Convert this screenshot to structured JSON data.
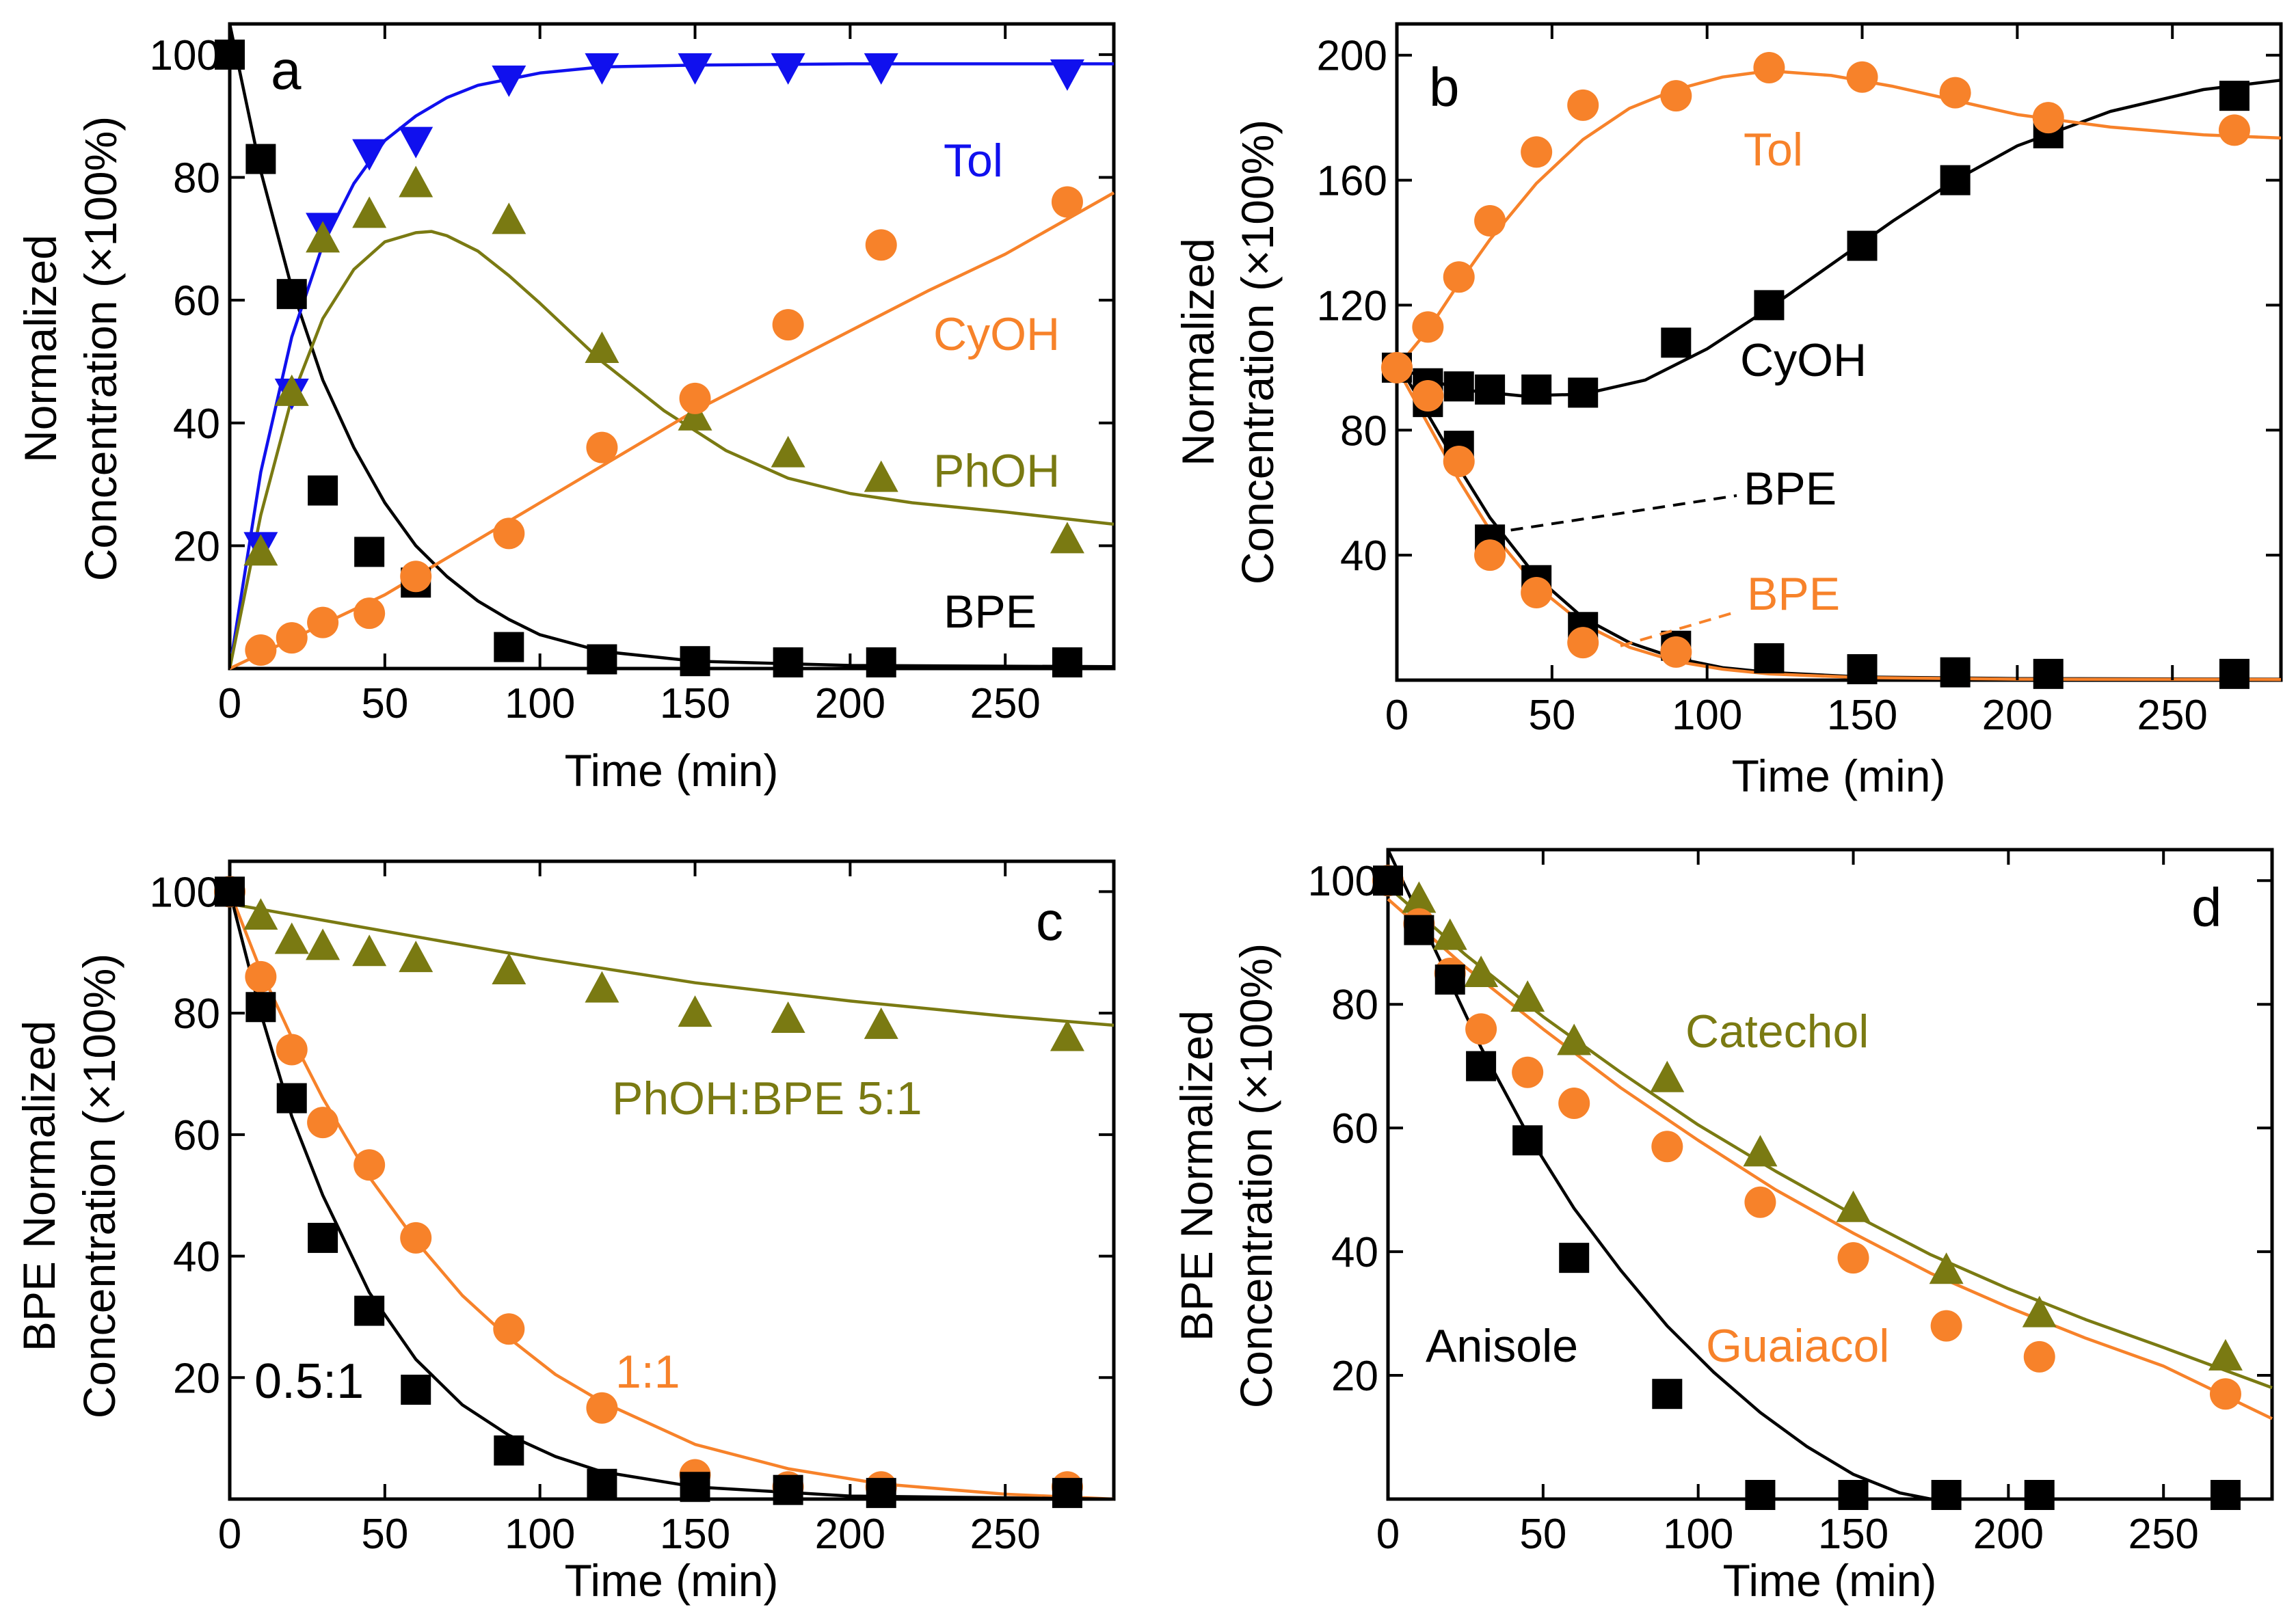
{
  "figure": {
    "colors": {
      "black": "#000000",
      "blue": "#1010ee",
      "orange": "#f7822a",
      "olive": "#7a7a12"
    }
  },
  "chart_data": [
    {
      "panel": "a",
      "type": "scatter",
      "xlabel": "Time (min)",
      "ylabel_lines": [
        "Normalized",
        "Concentration (×100%)"
      ],
      "xlim": [
        0,
        285
      ],
      "ylim": [
        0,
        105
      ],
      "xticks": [
        0,
        50,
        100,
        150,
        200,
        250
      ],
      "yticks": [
        20,
        40,
        60,
        80,
        100
      ],
      "series": [
        {
          "name": "BPE",
          "label": "BPE",
          "color": "#000000",
          "marker": "square",
          "x": [
            0,
            10,
            20,
            30,
            45,
            60,
            90,
            120,
            150,
            180,
            210,
            270
          ],
          "y": [
            100,
            83,
            61,
            29,
            19,
            14,
            3.5,
            1.5,
            1.2,
            1,
            1,
            1
          ],
          "fit": {
            "x": [
              0,
              10,
              20,
              30,
              40,
              50,
              60,
              70,
              80,
              90,
              100,
              120,
              150,
              200,
              285
            ],
            "y": [
              106,
              81,
              62,
              47,
              36,
              27,
              20,
              15,
              11,
              8,
              5.5,
              2.8,
              1.2,
              0.5,
              0.3
            ]
          }
        },
        {
          "name": "Tol",
          "label": "Tol",
          "color": "#1010ee",
          "marker": "triangle-down",
          "x": [
            10,
            20,
            30,
            45,
            60,
            90,
            120,
            150,
            180,
            210,
            270
          ],
          "y": [
            20,
            45,
            72,
            84,
            86,
            96,
            98,
            98,
            98,
            98,
            97
          ],
          "fit": {
            "x": [
              0,
              10,
              20,
              30,
              40,
              50,
              60,
              70,
              80,
              90,
              100,
              120,
              150,
              200,
              285
            ],
            "y": [
              0,
              32,
              54,
              69,
              79,
              86,
              90,
              93,
              95,
              96,
              97,
              98,
              98.3,
              98.5,
              98.5
            ]
          }
        },
        {
          "name": "PhOH",
          "label": "PhOH",
          "color": "#7a7a12",
          "marker": "triangle-up",
          "x": [
            10,
            20,
            30,
            45,
            60,
            90,
            120,
            150,
            180,
            210,
            270
          ],
          "y": [
            19,
            45,
            70,
            74,
            79,
            73,
            52,
            41,
            35,
            31,
            21
          ],
          "fit": {
            "x": [
              0,
              10,
              20,
              30,
              40,
              50,
              60,
              65,
              70,
              80,
              90,
              100,
              120,
              140,
              160,
              180,
              200,
              220,
              250,
              285
            ],
            "y": [
              0,
              25,
              44,
              57,
              65,
              69.5,
              71,
              71.2,
              70.5,
              68,
              64,
              59.5,
              50,
              42,
              35.5,
              31,
              28.5,
              27,
              25.5,
              23.5
            ]
          }
        },
        {
          "name": "CyOH",
          "label": "CyOH",
          "color": "#f7822a",
          "marker": "circle",
          "x": [
            10,
            20,
            30,
            45,
            60,
            90,
            120,
            150,
            180,
            210,
            270
          ],
          "y": [
            3,
            5,
            7.5,
            9,
            15,
            22,
            36,
            44,
            56,
            69,
            76
          ],
          "fit": {
            "x": [
              0,
              25,
              50,
              75,
              100,
              125,
              150,
              175,
              200,
              225,
              250,
              285
            ],
            "y": [
              0,
              6,
              12,
              19.5,
              27,
              34.5,
              42,
              48.5,
              55,
              61.5,
              67.5,
              77.5
            ]
          }
        }
      ],
      "panel_label": "a",
      "annotations": [
        "Tol",
        "CyOH",
        "PhOH",
        "BPE"
      ]
    },
    {
      "panel": "b",
      "type": "scatter",
      "xlabel": "Time (min)",
      "ylabel_lines": [
        "Normalized",
        "Concentration (×100%)"
      ],
      "xlim": [
        0,
        285
      ],
      "ylim": [
        0,
        210
      ],
      "xticks": [
        0,
        50,
        100,
        150,
        200,
        250
      ],
      "yticks": [
        40,
        80,
        120,
        160,
        200
      ],
      "series": [
        {
          "name": "BPE (black)",
          "label": "BPE",
          "color": "#000000",
          "marker": "square",
          "x": [
            0,
            10,
            10,
            20,
            30,
            45,
            60,
            90,
            120,
            150,
            180,
            210,
            270
          ],
          "y": [
            100,
            89,
            95,
            75,
            45,
            32,
            17,
            11,
            7,
            3.5,
            2.5,
            2,
            2
          ],
          "fit": {
            "x": [
              0,
              10,
              20,
              30,
              45,
              60,
              75,
              90,
              105,
              120,
              150,
              200,
              285
            ],
            "y": [
              102,
              85,
              68,
              52,
              33,
              20,
              12,
              7,
              4,
              2.5,
              1,
              0.5,
              0.3
            ]
          }
        },
        {
          "name": "CyOH",
          "label": "CyOH",
          "color": "#000000",
          "marker": "square",
          "x": [
            10,
            20,
            30,
            45,
            60,
            90,
            120,
            150,
            180,
            210,
            270
          ],
          "y": [
            94,
            94,
            93,
            93,
            92,
            108,
            120,
            139,
            160,
            175,
            187
          ],
          "fit": {
            "x": [
              0,
              20,
              40,
              60,
              80,
              100,
              120,
              140,
              160,
              180,
              200,
              230,
              260,
              285
            ],
            "y": [
              100,
              93,
              91,
              91.5,
              96,
              106,
              119,
              133,
              147,
              160,
              171,
              182,
              189,
              192
            ]
          }
        },
        {
          "name": "Tol",
          "label": "Tol",
          "color": "#f7822a",
          "marker": "circle",
          "x": [
            10,
            20,
            30,
            45,
            60,
            90,
            120,
            150,
            180,
            210,
            270
          ],
          "y": [
            113,
            129,
            147,
            169,
            184,
            187,
            196,
            193,
            188,
            180,
            176
          ],
          "fit": {
            "x": [
              0,
              10,
              20,
              30,
              45,
              60,
              75,
              90,
              105,
              120,
              140,
              160,
              180,
              200,
              230,
              260,
              285
            ],
            "y": [
              100,
              112,
              127,
              141,
              159,
              173,
              183,
              189,
              193,
              195,
              193.5,
              190,
              185.5,
              181,
              177,
              174.5,
              173.5
            ]
          }
        },
        {
          "name": "BPE (orange)",
          "label": "BPE",
          "color": "#f7822a",
          "marker": "circle",
          "x": [
            0,
            10,
            20,
            30,
            45,
            60,
            90
          ],
          "y": [
            100,
            91,
            70,
            40,
            28,
            12,
            9
          ],
          "fit": {
            "x": [
              0,
              10,
              20,
              30,
              45,
              60,
              75,
              90,
              105,
              120,
              150,
              200,
              285
            ],
            "y": [
              100,
              82,
              64,
              48,
              30,
              18,
              10.5,
              6,
              3.5,
              2,
              0.8,
              0.3,
              0.2
            ]
          }
        }
      ],
      "panel_label": "b",
      "annotations": [
        "Tol",
        "CyOH",
        "BPE",
        "BPE"
      ]
    },
    {
      "panel": "c",
      "type": "scatter",
      "xlabel": "Time (min)",
      "ylabel_lines": [
        "BPE Normalized",
        "Concentration (×100%)"
      ],
      "xlim": [
        0,
        285
      ],
      "ylim": [
        0,
        105
      ],
      "xticks": [
        0,
        50,
        100,
        150,
        200,
        250
      ],
      "yticks": [
        20,
        40,
        60,
        80,
        100
      ],
      "series": [
        {
          "name": "PhOH:BPE 5:1",
          "label": "PhOH:BPE 5:1",
          "color": "#7a7a12",
          "marker": "triangle-up",
          "x": [
            10,
            20,
            30,
            45,
            60,
            90,
            120,
            150,
            180,
            210,
            270
          ],
          "y": [
            96,
            92,
            91,
            90,
            89,
            87,
            84,
            80,
            79,
            78,
            76
          ],
          "fit": {
            "x": [
              0,
              50,
              100,
              150,
              200,
              250,
              285
            ],
            "y": [
              98,
              93.5,
              89,
              85,
              82,
              79.5,
              78
            ]
          }
        },
        {
          "name": "1:1",
          "label": "1:1",
          "color": "#f7822a",
          "marker": "circle",
          "x": [
            0,
            10,
            20,
            30,
            45,
            60,
            90,
            120,
            150,
            180,
            210,
            270
          ],
          "y": [
            100,
            86,
            74,
            62,
            55,
            43,
            28,
            15,
            4,
            2,
            2,
            2
          ],
          "fit": {
            "x": [
              0,
              10,
              20,
              30,
              45,
              60,
              75,
              90,
              105,
              120,
              150,
              180,
              210,
              250,
              285
            ],
            "y": [
              100,
              87,
              76,
              66,
              53,
              42.5,
              33.5,
              26.5,
              20.5,
              16,
              9,
              5,
              2.5,
              0.8,
              0
            ]
          }
        },
        {
          "name": "0.5:1",
          "label": "0.5:1",
          "color": "#000000",
          "marker": "square",
          "x": [
            0,
            10,
            20,
            30,
            45,
            60,
            90,
            120,
            150,
            180,
            210,
            270
          ],
          "y": [
            100,
            81,
            66,
            43,
            31,
            18,
            8,
            2.5,
            2,
            1.5,
            1,
            1
          ],
          "fit": {
            "x": [
              0,
              10,
              20,
              30,
              45,
              60,
              75,
              90,
              105,
              120,
              150,
              200,
              285
            ],
            "y": [
              100,
              80,
              63,
              50,
              34,
              23,
              15.5,
              10.5,
              7,
              4.5,
              2,
              0.5,
              0
            ]
          }
        }
      ],
      "panel_label": "c",
      "annotations": [
        "PhOH:BPE 5:1",
        "1:1",
        "0.5:1"
      ]
    },
    {
      "panel": "d",
      "type": "scatter",
      "xlabel": "Time (min)",
      "ylabel_lines": [
        "BPE Normalized",
        "Concentration (×100%)"
      ],
      "xlim": [
        0,
        285
      ],
      "ylim": [
        0,
        105
      ],
      "xticks": [
        0,
        50,
        100,
        150,
        200,
        250
      ],
      "yticks": [
        20,
        40,
        60,
        80,
        100
      ],
      "series": [
        {
          "name": "Catechol",
          "label": "Catechol",
          "color": "#7a7a12",
          "marker": "triangle-up",
          "x": [
            10,
            20,
            30,
            45,
            60,
            90,
            120,
            150,
            180,
            210,
            270
          ],
          "y": [
            97,
            91,
            85,
            81,
            74,
            68,
            56,
            47,
            37,
            30,
            23
          ],
          "fit": {
            "x": [
              0,
              25,
              50,
              75,
              100,
              125,
              150,
              175,
              200,
              225,
              250,
              285
            ],
            "y": [
              99,
              88,
              78,
              69,
              60.5,
              53,
              46,
              39.5,
              34,
              29,
              24.5,
              18
            ]
          }
        },
        {
          "name": "Guaiacol",
          "label": "Guaiacol",
          "color": "#f7822a",
          "marker": "circle",
          "x": [
            0,
            10,
            20,
            30,
            45,
            60,
            90,
            120,
            150,
            180,
            210,
            270
          ],
          "y": [
            100,
            93,
            85,
            76,
            69,
            64,
            57,
            48,
            39,
            28,
            23,
            17
          ],
          "fit": {
            "x": [
              0,
              25,
              50,
              75,
              100,
              125,
              150,
              175,
              200,
              225,
              250,
              285
            ],
            "y": [
              97,
              86,
              76,
              66.5,
              58,
              50,
              43,
              36.5,
              31,
              26,
              21.5,
              13
            ]
          }
        },
        {
          "name": "Anisole",
          "label": "Anisole",
          "color": "#000000",
          "marker": "square",
          "x": [
            0,
            10,
            20,
            30,
            45,
            60,
            90,
            120,
            150,
            180,
            210,
            270
          ],
          "y": [
            100,
            92,
            84,
            70,
            58,
            39,
            17,
            0.5,
            0.5,
            0.5,
            0.5,
            0.5
          ],
          "fit": {
            "x": [
              0,
              15,
              30,
              45,
              60,
              75,
              90,
              105,
              120,
              135,
              150,
              165,
              175
            ],
            "y": [
              108,
              89,
              73,
              59,
              47,
              37,
              28,
              20.5,
              14,
              8.5,
              4,
              1,
              0
            ]
          }
        }
      ],
      "panel_label": "d",
      "annotations": [
        "Catechol",
        "Guaiacol",
        "Anisole"
      ]
    }
  ]
}
